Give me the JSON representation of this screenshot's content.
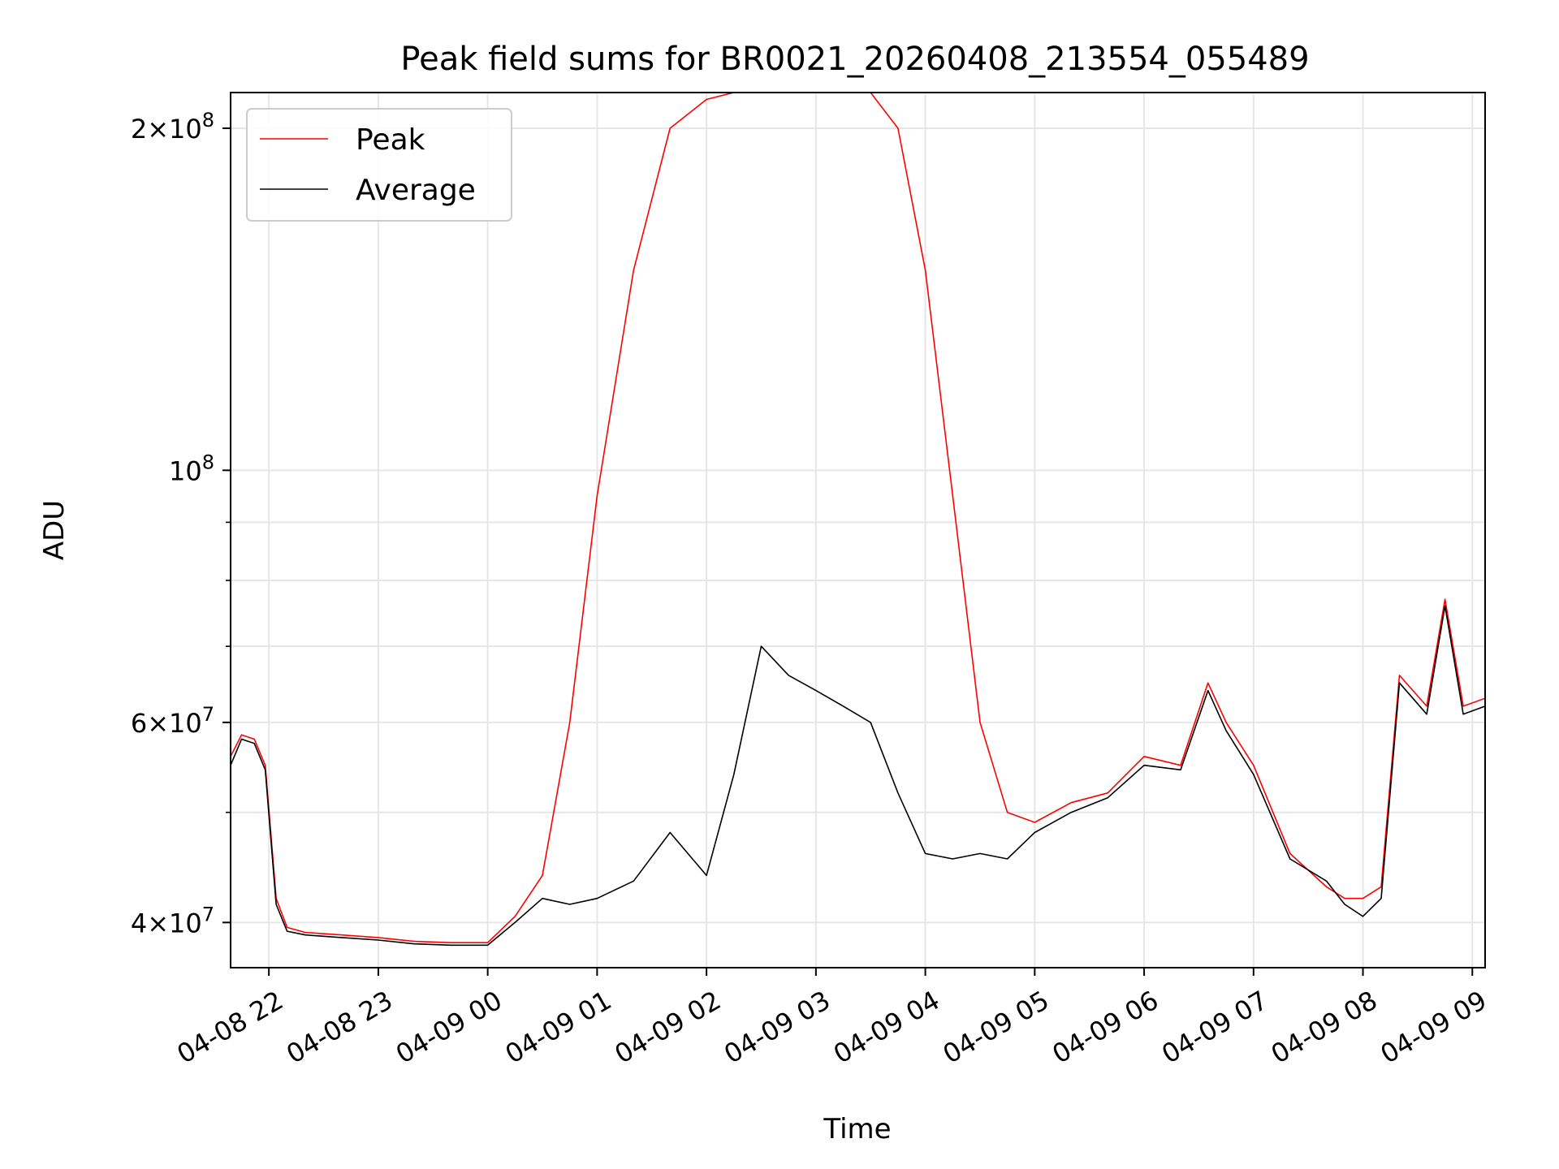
{
  "chart_data": {
    "type": "line",
    "title": "Peak field sums for BR0021_20260408_213554_055489",
    "xlabel": "Time",
    "ylabel": "ADU",
    "y_scale": "log",
    "ylim": [
      36500000,
      215000000
    ],
    "xlim": [
      "2026-04-08 21:39",
      "2026-04-09 09:07"
    ],
    "grid": true,
    "legend_position": "upper left",
    "x_ticks": [
      {
        "t": "2026-04-08 22:00",
        "label": "04-08 22"
      },
      {
        "t": "2026-04-08 23:00",
        "label": "04-08 23"
      },
      {
        "t": "2026-04-09 00:00",
        "label": "04-09 00"
      },
      {
        "t": "2026-04-09 01:00",
        "label": "04-09 01"
      },
      {
        "t": "2026-04-09 02:00",
        "label": "04-09 02"
      },
      {
        "t": "2026-04-09 03:00",
        "label": "04-09 03"
      },
      {
        "t": "2026-04-09 04:00",
        "label": "04-09 04"
      },
      {
        "t": "2026-04-09 05:00",
        "label": "04-09 05"
      },
      {
        "t": "2026-04-09 06:00",
        "label": "04-09 06"
      },
      {
        "t": "2026-04-09 07:00",
        "label": "04-09 07"
      },
      {
        "t": "2026-04-09 08:00",
        "label": "04-09 08"
      },
      {
        "t": "2026-04-09 09:00",
        "label": "04-09 09"
      }
    ],
    "y_major_ticks": [
      {
        "value": 40000000,
        "mantissa": "4",
        "exp": "7"
      },
      {
        "value": 60000000,
        "mantissa": "6",
        "exp": "7"
      },
      {
        "value": 100000000,
        "mantissa": "",
        "exp": "8"
      },
      {
        "value": 200000000,
        "mantissa": "2",
        "exp": "8"
      }
    ],
    "y_minor_ticks": [
      50000000,
      70000000,
      80000000,
      90000000
    ],
    "series": [
      {
        "name": "Peak",
        "color": "#ff0000",
        "x": [
          "2026-04-08 21:39",
          "2026-04-08 21:45",
          "2026-04-08 21:52",
          "2026-04-08 21:58",
          "2026-04-08 22:04",
          "2026-04-08 22:10",
          "2026-04-08 22:20",
          "2026-04-08 22:40",
          "2026-04-08 23:00",
          "2026-04-08 23:20",
          "2026-04-08 23:40",
          "2026-04-09 00:00",
          "2026-04-09 00:15",
          "2026-04-09 00:30",
          "2026-04-09 00:45",
          "2026-04-09 01:00",
          "2026-04-09 01:20",
          "2026-04-09 01:40",
          "2026-04-09 02:00",
          "2026-04-09 02:15",
          "2026-04-09 02:30",
          "2026-04-09 02:45",
          "2026-04-09 03:00",
          "2026-04-09 03:15",
          "2026-04-09 03:30",
          "2026-04-09 03:45",
          "2026-04-09 04:00",
          "2026-04-09 04:15",
          "2026-04-09 04:30",
          "2026-04-09 04:45",
          "2026-04-09 05:00",
          "2026-04-09 05:20",
          "2026-04-09 05:40",
          "2026-04-09 06:00",
          "2026-04-09 06:20",
          "2026-04-09 06:35",
          "2026-04-09 06:45",
          "2026-04-09 07:00",
          "2026-04-09 07:20",
          "2026-04-09 07:40",
          "2026-04-09 07:50",
          "2026-04-09 08:00",
          "2026-04-09 08:10",
          "2026-04-09 08:20",
          "2026-04-09 08:35",
          "2026-04-09 08:45",
          "2026-04-09 08:55",
          "2026-04-09 09:07"
        ],
        "y": [
          56000000,
          58500000,
          58000000,
          55000000,
          42000000,
          39600000,
          39200000,
          39000000,
          38800000,
          38500000,
          38400000,
          38400000,
          40500000,
          44000000,
          60000000,
          95000000,
          150000000,
          200000000,
          212000000,
          215000000,
          215000000,
          215000000,
          215000000,
          215000000,
          215000000,
          200000000,
          150000000,
          95000000,
          60000000,
          50000000,
          49000000,
          51000000,
          52000000,
          56000000,
          55000000,
          65000000,
          60000000,
          55000000,
          46000000,
          43000000,
          42000000,
          42000000,
          43000000,
          66000000,
          62000000,
          77000000,
          62000000,
          63000000
        ]
      },
      {
        "name": "Average",
        "color": "#000000",
        "x": [
          "2026-04-08 21:39",
          "2026-04-08 21:45",
          "2026-04-08 21:52",
          "2026-04-08 21:58",
          "2026-04-08 22:04",
          "2026-04-08 22:10",
          "2026-04-08 22:20",
          "2026-04-08 22:40",
          "2026-04-08 23:00",
          "2026-04-08 23:20",
          "2026-04-08 23:40",
          "2026-04-09 00:00",
          "2026-04-09 00:15",
          "2026-04-09 00:30",
          "2026-04-09 00:45",
          "2026-04-09 01:00",
          "2026-04-09 01:20",
          "2026-04-09 01:40",
          "2026-04-09 02:00",
          "2026-04-09 02:15",
          "2026-04-09 02:30",
          "2026-04-09 02:45",
          "2026-04-09 03:00",
          "2026-04-09 03:15",
          "2026-04-09 03:30",
          "2026-04-09 03:45",
          "2026-04-09 04:00",
          "2026-04-09 04:15",
          "2026-04-09 04:30",
          "2026-04-09 04:45",
          "2026-04-09 05:00",
          "2026-04-09 05:20",
          "2026-04-09 05:40",
          "2026-04-09 06:00",
          "2026-04-09 06:20",
          "2026-04-09 06:35",
          "2026-04-09 06:45",
          "2026-04-09 07:00",
          "2026-04-09 07:20",
          "2026-04-09 07:40",
          "2026-04-09 07:50",
          "2026-04-09 08:00",
          "2026-04-09 08:10",
          "2026-04-09 08:20",
          "2026-04-09 08:35",
          "2026-04-09 08:45",
          "2026-04-09 08:55",
          "2026-04-09 09:07"
        ],
        "y": [
          55000000,
          58000000,
          57500000,
          54500000,
          41500000,
          39300000,
          39000000,
          38800000,
          38600000,
          38300000,
          38200000,
          38200000,
          40000000,
          42000000,
          41500000,
          42000000,
          43500000,
          48000000,
          44000000,
          54000000,
          70000000,
          66000000,
          64000000,
          62000000,
          60000000,
          52000000,
          46000000,
          45500000,
          46000000,
          45500000,
          48000000,
          50000000,
          51500000,
          55000000,
          54500000,
          64000000,
          59000000,
          54000000,
          45500000,
          43500000,
          41500000,
          40500000,
          42000000,
          65000000,
          61000000,
          76000000,
          61000000,
          62000000
        ]
      }
    ]
  }
}
